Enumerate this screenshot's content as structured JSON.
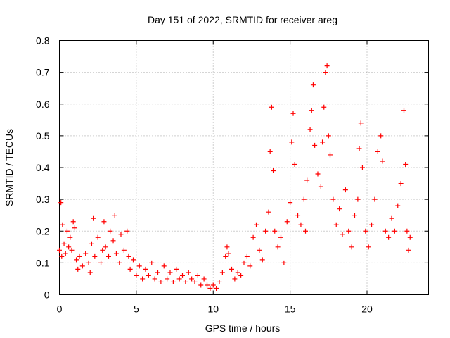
{
  "chart_data": {
    "type": "scatter",
    "title": "Day 151 of 2022, SRMTID for receiver areg",
    "xlabel": "GPS time / hours",
    "ylabel": "SRMTID / TECUs",
    "xlim": [
      0,
      24
    ],
    "ylim": [
      0,
      0.8
    ],
    "x_ticks": [
      0,
      5,
      10,
      15,
      20
    ],
    "x_tick_labels": [
      "0",
      "5",
      "10",
      "15",
      "20"
    ],
    "y_ticks": [
      0,
      0.1,
      0.2,
      0.3,
      0.4,
      0.5,
      0.6,
      0.7,
      0.8
    ],
    "y_tick_labels": [
      "0",
      "0.1",
      "0.2",
      "0.3",
      "0.4",
      "0.5",
      "0.6",
      "0.7",
      "0.8"
    ],
    "grid": true,
    "marker": "+",
    "series": [
      {
        "name": "SRMTID",
        "color": "#ff0000",
        "points": [
          [
            0.0,
            0.14
          ],
          [
            0.1,
            0.29
          ],
          [
            0.15,
            0.12
          ],
          [
            0.2,
            0.22
          ],
          [
            0.3,
            0.16
          ],
          [
            0.4,
            0.13
          ],
          [
            0.5,
            0.2
          ],
          [
            0.6,
            0.15
          ],
          [
            0.7,
            0.18
          ],
          [
            0.8,
            0.14
          ],
          [
            0.9,
            0.23
          ],
          [
            1.0,
            0.21
          ],
          [
            1.1,
            0.11
          ],
          [
            1.2,
            0.08
          ],
          [
            1.3,
            0.12
          ],
          [
            1.5,
            0.09
          ],
          [
            1.7,
            0.13
          ],
          [
            1.9,
            0.1
          ],
          [
            2.0,
            0.07
          ],
          [
            2.1,
            0.16
          ],
          [
            2.2,
            0.24
          ],
          [
            2.3,
            0.12
          ],
          [
            2.5,
            0.18
          ],
          [
            2.7,
            0.1
          ],
          [
            2.8,
            0.14
          ],
          [
            2.9,
            0.23
          ],
          [
            3.0,
            0.15
          ],
          [
            3.2,
            0.12
          ],
          [
            3.3,
            0.2
          ],
          [
            3.5,
            0.17
          ],
          [
            3.6,
            0.25
          ],
          [
            3.7,
            0.13
          ],
          [
            3.9,
            0.1
          ],
          [
            4.0,
            0.19
          ],
          [
            4.2,
            0.14
          ],
          [
            4.4,
            0.2
          ],
          [
            4.5,
            0.12
          ],
          [
            4.6,
            0.08
          ],
          [
            4.8,
            0.11
          ],
          [
            5.0,
            0.06
          ],
          [
            5.2,
            0.09
          ],
          [
            5.4,
            0.05
          ],
          [
            5.6,
            0.08
          ],
          [
            5.8,
            0.06
          ],
          [
            6.0,
            0.1
          ],
          [
            6.2,
            0.05
          ],
          [
            6.4,
            0.07
          ],
          [
            6.6,
            0.04
          ],
          [
            6.8,
            0.09
          ],
          [
            7.0,
            0.05
          ],
          [
            7.2,
            0.07
          ],
          [
            7.4,
            0.04
          ],
          [
            7.6,
            0.08
          ],
          [
            7.8,
            0.05
          ],
          [
            8.0,
            0.06
          ],
          [
            8.2,
            0.04
          ],
          [
            8.4,
            0.07
          ],
          [
            8.6,
            0.05
          ],
          [
            8.8,
            0.04
          ],
          [
            9.0,
            0.06
          ],
          [
            9.2,
            0.03
          ],
          [
            9.4,
            0.05
          ],
          [
            9.6,
            0.03
          ],
          [
            9.8,
            0.02
          ],
          [
            10.0,
            0.03
          ],
          [
            10.2,
            0.02
          ],
          [
            10.4,
            0.04
          ],
          [
            10.6,
            0.07
          ],
          [
            10.8,
            0.12
          ],
          [
            10.9,
            0.15
          ],
          [
            11.0,
            0.13
          ],
          [
            11.2,
            0.08
          ],
          [
            11.4,
            0.05
          ],
          [
            11.6,
            0.07
          ],
          [
            11.8,
            0.06
          ],
          [
            12.0,
            0.1
          ],
          [
            12.2,
            0.12
          ],
          [
            12.4,
            0.09
          ],
          [
            12.6,
            0.18
          ],
          [
            12.8,
            0.22
          ],
          [
            13.0,
            0.14
          ],
          [
            13.2,
            0.11
          ],
          [
            13.4,
            0.2
          ],
          [
            13.6,
            0.26
          ],
          [
            13.7,
            0.45
          ],
          [
            13.8,
            0.59
          ],
          [
            13.9,
            0.39
          ],
          [
            14.0,
            0.2
          ],
          [
            14.2,
            0.15
          ],
          [
            14.4,
            0.18
          ],
          [
            14.6,
            0.1
          ],
          [
            14.8,
            0.23
          ],
          [
            15.0,
            0.29
          ],
          [
            15.1,
            0.48
          ],
          [
            15.2,
            0.57
          ],
          [
            15.3,
            0.41
          ],
          [
            15.5,
            0.25
          ],
          [
            15.7,
            0.22
          ],
          [
            15.9,
            0.3
          ],
          [
            16.0,
            0.2
          ],
          [
            16.1,
            0.36
          ],
          [
            16.3,
            0.52
          ],
          [
            16.4,
            0.58
          ],
          [
            16.5,
            0.66
          ],
          [
            16.6,
            0.47
          ],
          [
            16.8,
            0.38
          ],
          [
            17.0,
            0.34
          ],
          [
            17.1,
            0.48
          ],
          [
            17.2,
            0.59
          ],
          [
            17.3,
            0.7
          ],
          [
            17.4,
            0.72
          ],
          [
            17.5,
            0.5
          ],
          [
            17.6,
            0.44
          ],
          [
            17.8,
            0.3
          ],
          [
            18.0,
            0.22
          ],
          [
            18.2,
            0.27
          ],
          [
            18.4,
            0.19
          ],
          [
            18.6,
            0.33
          ],
          [
            18.8,
            0.2
          ],
          [
            19.0,
            0.15
          ],
          [
            19.2,
            0.25
          ],
          [
            19.4,
            0.3
          ],
          [
            19.5,
            0.46
          ],
          [
            19.6,
            0.54
          ],
          [
            19.7,
            0.4
          ],
          [
            19.9,
            0.2
          ],
          [
            20.1,
            0.15
          ],
          [
            20.3,
            0.22
          ],
          [
            20.5,
            0.3
          ],
          [
            20.7,
            0.45
          ],
          [
            20.9,
            0.5
          ],
          [
            21.0,
            0.42
          ],
          [
            21.2,
            0.2
          ],
          [
            21.4,
            0.18
          ],
          [
            21.6,
            0.24
          ],
          [
            21.8,
            0.2
          ],
          [
            22.0,
            0.28
          ],
          [
            22.2,
            0.35
          ],
          [
            22.4,
            0.58
          ],
          [
            22.5,
            0.41
          ],
          [
            22.6,
            0.2
          ],
          [
            22.7,
            0.14
          ],
          [
            22.8,
            0.18
          ]
        ]
      }
    ]
  }
}
